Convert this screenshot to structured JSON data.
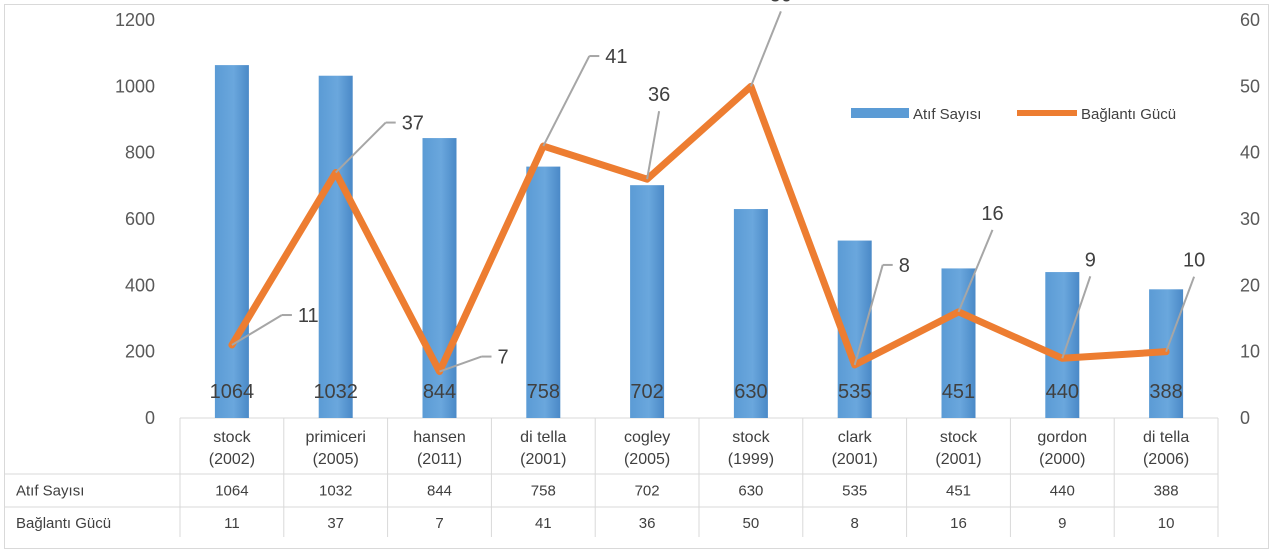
{
  "chart_data": {
    "type": "bar",
    "categories": [
      [
        "stock",
        "(2002)"
      ],
      [
        "primiceri",
        "(2005)"
      ],
      [
        "hansen",
        "(2011)"
      ],
      [
        "di tella",
        "(2001)"
      ],
      [
        "cogley",
        "(2005)"
      ],
      [
        "stock",
        "(1999)"
      ],
      [
        "clark",
        "(2001)"
      ],
      [
        "stock",
        "(2001)"
      ],
      [
        "gordon",
        "(2000)"
      ],
      [
        "di tella",
        "(2006)"
      ]
    ],
    "series": [
      {
        "name": "Atıf Sayısı",
        "type": "bar",
        "axis": "left",
        "color": "#5b9bd5",
        "values": [
          1064,
          1032,
          844,
          758,
          702,
          630,
          535,
          451,
          440,
          388
        ]
      },
      {
        "name": "Bağlantı Gücü",
        "type": "line",
        "axis": "right",
        "color": "#ed7d31",
        "values": [
          11,
          37,
          7,
          41,
          36,
          50,
          8,
          16,
          9,
          10
        ]
      }
    ],
    "y_left": {
      "range": [
        0,
        1200
      ],
      "ticks": [
        "0",
        "200",
        "400",
        "600",
        "800",
        "1000",
        "1200"
      ]
    },
    "y_right": {
      "range": [
        0,
        60
      ],
      "ticks": [
        "0",
        "10",
        "20",
        "30",
        "40",
        "50",
        "60"
      ]
    },
    "legend_position": "top-right",
    "data_table": true,
    "grid": false
  }
}
